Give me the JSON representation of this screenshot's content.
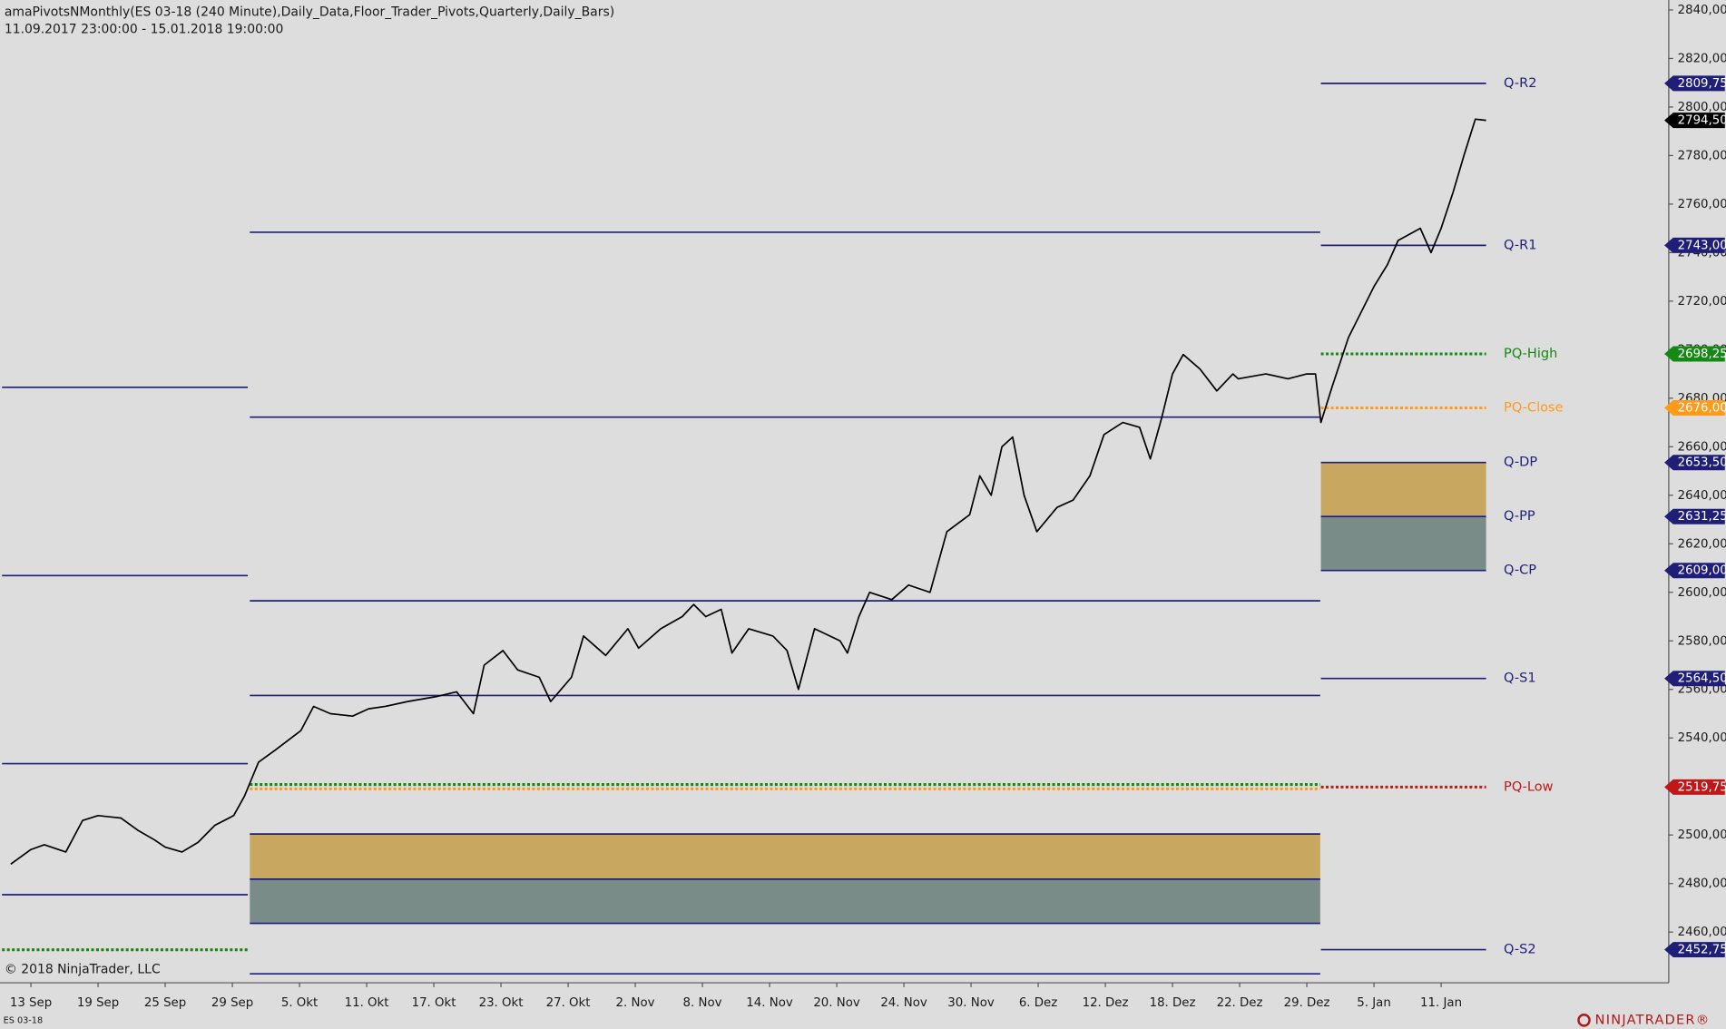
{
  "chart_data": {
    "type": "line",
    "title": "amaPivotsNMonthly(ES 03-18 (240 Minute),Daily_Data,Floor_Trader_Pivots,Quarterly,Daily_Bars)",
    "subtitle": "11.09.2017 23:00:00 - 15.01.2018 19:00:00",
    "copyright": "© 2018 NinjaTrader, LLC",
    "instrument": "ES 03-18",
    "logo": "NINJATRADER®",
    "xlim": [
      -0.46,
      24.39
    ],
    "ylim": [
      2439.1,
      2844.1
    ],
    "xticks": [
      {
        "value": 0,
        "label": "13 Sep"
      },
      {
        "value": 1,
        "label": "19 Sep"
      },
      {
        "value": 2,
        "label": "25 Sep"
      },
      {
        "value": 3,
        "label": "29 Sep"
      },
      {
        "value": 4,
        "label": "5. Okt"
      },
      {
        "value": 5,
        "label": "11. Okt"
      },
      {
        "value": 6,
        "label": "17. Okt"
      },
      {
        "value": 7,
        "label": "23. Okt"
      },
      {
        "value": 8,
        "label": "27. Okt"
      },
      {
        "value": 9,
        "label": "2. Nov"
      },
      {
        "value": 10,
        "label": "8. Nov"
      },
      {
        "value": 11,
        "label": "14. Nov"
      },
      {
        "value": 12,
        "label": "20. Nov"
      },
      {
        "value": 13,
        "label": "24. Nov"
      },
      {
        "value": 14,
        "label": "30. Nov"
      },
      {
        "value": 15,
        "label": "6. Dez"
      },
      {
        "value": 16,
        "label": "12. Dez"
      },
      {
        "value": 17,
        "label": "18. Dez"
      },
      {
        "value": 18,
        "label": "22. Dez"
      },
      {
        "value": 19,
        "label": "29. Dez"
      },
      {
        "value": 20,
        "label": "5. Jan"
      },
      {
        "value": 21,
        "label": "11. Jan"
      }
    ],
    "yticks": [
      {
        "value": 2460,
        "label": "2460,00"
      },
      {
        "value": 2480,
        "label": "2480,00"
      },
      {
        "value": 2500,
        "label": "2500,00"
      },
      {
        "value": 2520,
        "label": "2520,00"
      },
      {
        "value": 2540,
        "label": "2540,00"
      },
      {
        "value": 2560,
        "label": "2560,00"
      },
      {
        "value": 2580,
        "label": "2580,00"
      },
      {
        "value": 2600,
        "label": "2600,00"
      },
      {
        "value": 2620,
        "label": "2620,00"
      },
      {
        "value": 2640,
        "label": "2640,00"
      },
      {
        "value": 2660,
        "label": "2660,00"
      },
      {
        "value": 2680,
        "label": "2680,00"
      },
      {
        "value": 2700,
        "label": "2700,00"
      },
      {
        "value": 2720,
        "label": "2720,00"
      },
      {
        "value": 2740,
        "label": "2740,00"
      },
      {
        "value": 2760,
        "label": "2760,00"
      },
      {
        "value": 2780,
        "label": "2780,00"
      },
      {
        "value": 2800,
        "label": "2800,00"
      },
      {
        "value": 2820,
        "label": "2820,00"
      },
      {
        "value": 2840,
        "label": "2840,00"
      }
    ],
    "series": [
      {
        "name": "ES 03-18",
        "color": "#000000",
        "x": [
          -0.3,
          0,
          0.2,
          0.52,
          0.77,
          1,
          1.34,
          1.59,
          1.84,
          2,
          2.25,
          2.49,
          2.74,
          3.02,
          3.18,
          3.39,
          3.64,
          4.02,
          4.21,
          4.46,
          4.79,
          5.03,
          5.28,
          5.61,
          6.03,
          6.34,
          6.59,
          6.75,
          7.03,
          7.25,
          7.57,
          7.74,
          8.05,
          8.23,
          8.56,
          8.89,
          9.05,
          9.38,
          9.7,
          9.87,
          10.05,
          10.28,
          10.44,
          10.69,
          11.05,
          11.26,
          11.43,
          11.67,
          12.05,
          12.16,
          12.33,
          12.49,
          12.82,
          13.07,
          13.39,
          13.64,
          13.98,
          14.13,
          14.3,
          14.46,
          14.62,
          14.79,
          14.98,
          15.28,
          15.52,
          15.77,
          15.98,
          16.26,
          16.51,
          16.67,
          16.84,
          17,
          17.16,
          17.41,
          17.66,
          17.9,
          17.98,
          18.39,
          18.72,
          19,
          19.13,
          19.21,
          19.38,
          19.62,
          20,
          20.2,
          20.36,
          20.69,
          20.85,
          21,
          21.18,
          21.34,
          21.51,
          21.67
        ],
        "values": [
          2488,
          2494,
          2496,
          2493,
          2506,
          2508,
          2507,
          2502,
          2498,
          2495,
          2493,
          2497,
          2504,
          2508,
          2516,
          2530,
          2535,
          2543,
          2553,
          2550,
          2549,
          2552,
          2553,
          2555,
          2557,
          2559,
          2550,
          2570,
          2576,
          2568,
          2565,
          2555,
          2565,
          2582,
          2574,
          2585,
          2577,
          2585,
          2590,
          2595,
          2590,
          2593,
          2575,
          2585,
          2582,
          2576,
          2560,
          2585,
          2580,
          2575,
          2590,
          2600,
          2597,
          2603,
          2600,
          2625,
          2632,
          2648,
          2640,
          2660,
          2664,
          2640,
          2625,
          2635,
          2638,
          2648,
          2665,
          2670,
          2668,
          2655,
          2672,
          2690,
          2698,
          2692,
          2683,
          2690,
          2688,
          2690,
          2688,
          2690,
          2690,
          2670,
          2685,
          2705,
          2726,
          2735,
          2745,
          2750,
          2740,
          2750,
          2765,
          2780,
          2795,
          2794.5
        ]
      }
    ],
    "last_price": {
      "value": 2794.5,
      "label": "2794,50",
      "color": "#000000"
    },
    "pivot_periods": [
      {
        "x": [
          -0.43,
          3.23
        ],
        "levels": [
          {
            "value": 2684.5,
            "color": "#1f1f7a",
            "style": "solid"
          },
          {
            "value": 2606.9,
            "color": "#1f1f7a",
            "style": "solid"
          },
          {
            "value": 2529.4,
            "color": "#1f1f7a",
            "style": "solid"
          },
          {
            "value": 2475.4,
            "color": "#1f1f7a",
            "style": "solid"
          },
          {
            "value": 2452.7,
            "color": "#138a13",
            "style": "dotted"
          }
        ],
        "zones": []
      },
      {
        "x": [
          3.26,
          19.2
        ],
        "levels": [
          {
            "value": 2748.4,
            "color": "#1f1f7a",
            "style": "solid"
          },
          {
            "value": 2672.2,
            "color": "#1f1f7a",
            "style": "solid"
          },
          {
            "value": 2596.5,
            "color": "#1f1f7a",
            "style": "solid"
          },
          {
            "value": 2557.5,
            "color": "#1f1f7a",
            "style": "solid"
          },
          {
            "value": 2520.8,
            "color": "#138a13",
            "style": "dotted"
          },
          {
            "value": 2519,
            "color": "#ff9a1a",
            "style": "dotted"
          },
          {
            "value": 2500.4,
            "color": "#1f1f7a",
            "style": "solid"
          },
          {
            "value": 2481.8,
            "color": "#1f1f7a",
            "style": "solid"
          },
          {
            "value": 2463.6,
            "color": "#1f1f7a",
            "style": "solid"
          },
          {
            "value": 2442.8,
            "color": "#1f1f7a",
            "style": "solid"
          }
        ],
        "zones": [
          {
            "from": 2500.4,
            "to": 2481.8,
            "color": "#c8a860"
          },
          {
            "from": 2481.8,
            "to": 2463.6,
            "color": "#7a8c88"
          }
        ]
      },
      {
        "x": [
          19.21,
          21.67
        ],
        "levels": [
          {
            "name": "Q-R2",
            "value": 2809.75,
            "value_label": "2809,75",
            "color": "#1f1f7a",
            "style": "solid"
          },
          {
            "name": "Q-R1",
            "value": 2743,
            "value_label": "2743,00",
            "color": "#1f1f7a",
            "style": "solid"
          },
          {
            "name": "PQ-High",
            "value": 2698.25,
            "value_label": "2698,25",
            "color": "#138a13",
            "style": "dotted"
          },
          {
            "name": "PQ-Close",
            "value": 2676,
            "value_label": "2676,00",
            "color": "#ff9a1a",
            "style": "dotted"
          },
          {
            "name": "Q-DP",
            "value": 2653.5,
            "value_label": "2653,50",
            "color": "#1f1f7a",
            "style": "solid"
          },
          {
            "name": "Q-PP",
            "value": 2631.25,
            "value_label": "2631,25",
            "color": "#1f1f7a",
            "style": "solid"
          },
          {
            "name": "Q-CP",
            "value": 2609,
            "value_label": "2609,00",
            "color": "#1f1f7a",
            "style": "solid"
          },
          {
            "name": "Q-S1",
            "value": 2564.5,
            "value_label": "2564,50",
            "color": "#1f1f7a",
            "style": "solid"
          },
          {
            "name": "PQ-Low",
            "value": 2519.75,
            "value_label": "2519,75",
            "color": "#c01818",
            "style": "dotted"
          },
          {
            "name": "Q-S2",
            "value": 2452.75,
            "value_label": "2452,75",
            "color": "#1f1f7a",
            "style": "solid"
          }
        ],
        "zones": [
          {
            "from": 2653.5,
            "to": 2631.25,
            "color": "#c8a860"
          },
          {
            "from": 2631.25,
            "to": 2609,
            "color": "#7a8c88"
          }
        ]
      }
    ]
  }
}
